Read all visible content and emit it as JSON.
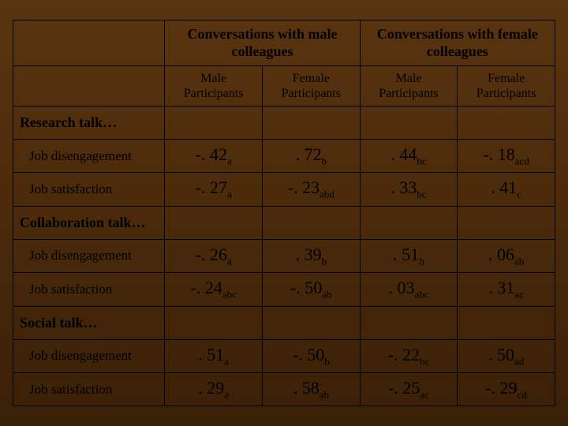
{
  "headers": {
    "group1": "Conversations with male colleagues",
    "group2": "Conversations with female colleagues",
    "sub1": "Male Participants",
    "sub2": "Female Participants",
    "sub3": "Male Participants",
    "sub4": "Female Participants"
  },
  "categories": {
    "research": "Research talk…",
    "collab": "Collaboration talk…",
    "social": "Social talk…"
  },
  "rows": {
    "diseng": "Job disengagement",
    "satis": "Job satisfaction"
  },
  "values": {
    "r1c1v": "-. 42",
    "r1c1s": "a",
    "r1c2v": ". 72",
    "r1c2s": "b",
    "r1c3v": ". 44",
    "r1c3s": "bc",
    "r1c4v": "-. 18",
    "r1c4s": "acd",
    "r2c1v": "-. 27",
    "r2c1s": "a",
    "r2c2v": "-. 23",
    "r2c2s": "abd",
    "r2c3v": ". 33",
    "r2c3s": "bc",
    "r2c4v": ". 41",
    "r2c4s": "c",
    "r3c1v": "-. 26",
    "r3c1s": "a",
    "r3c2v": ". 39",
    "r3c2s": "b",
    "r3c3v": ". 51",
    "r3c3s": "b",
    "r3c4v": ". 06",
    "r3c4s": "ab",
    "r4c1v": "-. 24",
    "r4c1s": "abc",
    "r4c2v": "-. 50",
    "r4c2s": "ab",
    "r4c3v": ". 03",
    "r4c3s": "abc",
    "r4c4v": ". 31",
    "r4c4s": "ac",
    "r5c1v": ". 51",
    "r5c1s": "a",
    "r5c2v": "-. 50",
    "r5c2s": "b",
    "r5c3v": "-. 22",
    "r5c3s": "bc",
    "r5c4v": ". 50",
    "r5c4s": "ad",
    "r6c1v": ". 29",
    "r6c1s": "a",
    "r6c2v": ". 58",
    "r6c2s": "ab",
    "r6c3v": "-. 25",
    "r6c3s": "ac",
    "r6c4v": "-. 29",
    "r6c4s": "cd"
  }
}
